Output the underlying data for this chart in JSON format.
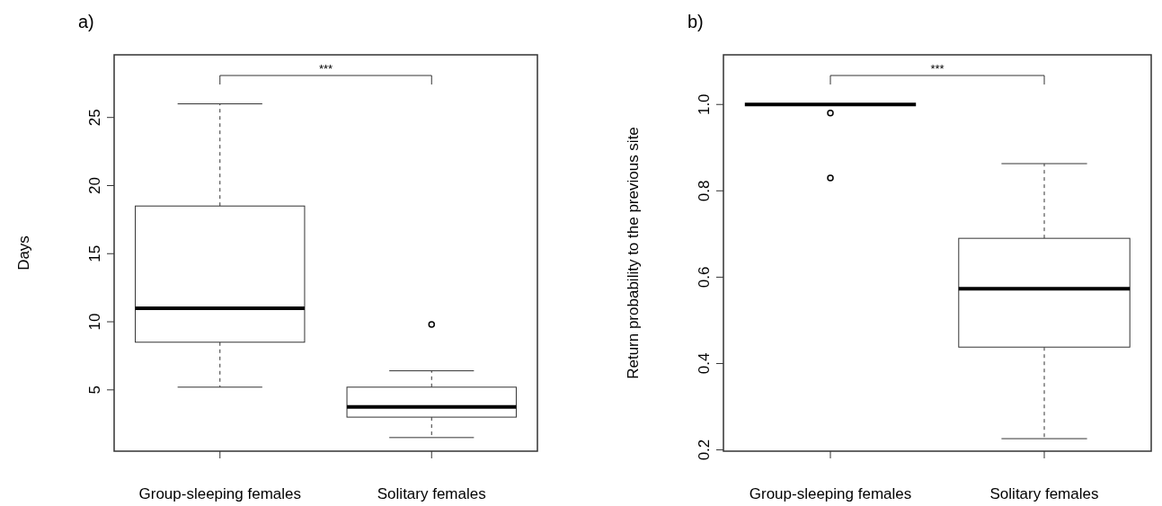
{
  "chart_data": [
    {
      "type": "box",
      "title": "a)",
      "ylabel": "Days",
      "categories": [
        "Group-sleeping females",
        "Solitary females"
      ],
      "boxes": [
        {
          "low": 5.2,
          "q1": 8.5,
          "median": 11.0,
          "q3": 18.5,
          "high": 26.0
        },
        {
          "low": 1.5,
          "q1": 3.0,
          "median": 3.75,
          "q3": 5.2,
          "high": 6.4,
          "outliers": [
            9.8
          ]
        }
      ],
      "ylim": [
        0.5,
        29.6
      ],
      "yticks": [
        5,
        10,
        15,
        20,
        25
      ],
      "annotations": [
        "***"
      ],
      "grid": false
    },
    {
      "type": "box",
      "title": "b)",
      "ylabel": "Return probability to the previous site",
      "categories": [
        "Group-sleeping females",
        "Solitary females"
      ],
      "boxes": [
        {
          "low": 1.0,
          "q1": 1.0,
          "median": 1.0,
          "q3": 1.0,
          "high": 1.0,
          "outliers": [
            0.98,
            0.83
          ]
        },
        {
          "low": 0.226,
          "q1": 0.438,
          "median": 0.573,
          "q3": 0.69,
          "high": 0.863
        }
      ],
      "ylim": [
        0.197,
        1.115
      ],
      "yticks": [
        {
          "value": 0.2,
          "label": "0.2"
        },
        {
          "value": 0.4,
          "label": "0.4"
        },
        {
          "value": 0.6,
          "label": "0.6"
        },
        {
          "value": 0.8,
          "label": "0.8"
        },
        {
          "value": 1.0,
          "label": "1.0"
        }
      ],
      "annotations": [
        "***"
      ],
      "grid": false
    }
  ]
}
